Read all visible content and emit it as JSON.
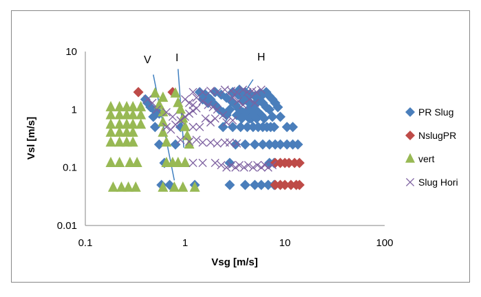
{
  "chart_data": {
    "type": "scatter",
    "title": "",
    "xlabel": "Vsg [m/s]",
    "ylabel": "Vsl [m/s]",
    "x_scale": "log",
    "y_scale": "log",
    "xlim": [
      0.1,
      100
    ],
    "ylim": [
      0.01,
      10
    ],
    "x_tick_labels": [
      "0.1",
      "1",
      "10",
      "100"
    ],
    "y_tick_labels": [
      "0.01",
      "0.1",
      "1",
      "10"
    ],
    "grid": false,
    "legend_position": "right",
    "annotations": [
      {
        "text": "V",
        "x": 0.42,
        "y": 6.3
      },
      {
        "text": "I",
        "x": 0.83,
        "y": 6.8
      },
      {
        "text": "H",
        "x": 5.8,
        "y": 7.0
      }
    ],
    "annotation_lines": [
      {
        "label": "V",
        "points": [
          [
            0.48,
            4.0
          ],
          [
            0.78,
            0.06
          ]
        ]
      },
      {
        "label": "I",
        "points": [
          [
            0.85,
            5.0
          ],
          [
            0.97,
            0.22
          ]
        ]
      },
      {
        "label": "H",
        "points": [
          [
            4.8,
            3.3
          ],
          [
            2.3,
            0.48
          ]
        ]
      }
    ],
    "series": [
      {
        "name": "PR Slug",
        "marker": "diamond",
        "color": "#4A7EBB",
        "points": [
          [
            0.4,
            1.5
          ],
          [
            0.42,
            1.3
          ],
          [
            0.45,
            1.1
          ],
          [
            0.5,
            0.95
          ],
          [
            0.55,
            0.85
          ],
          [
            0.48,
            0.75
          ],
          [
            0.5,
            0.5
          ],
          [
            0.55,
            0.25
          ],
          [
            0.62,
            0.12
          ],
          [
            0.58,
            0.05
          ],
          [
            0.7,
            0.05
          ],
          [
            0.8,
            0.25
          ],
          [
            0.9,
            0.5
          ],
          [
            1.25,
            0.05
          ],
          [
            1.4,
            2.0
          ],
          [
            1.6,
            1.8
          ],
          [
            1.8,
            1.5
          ],
          [
            2.0,
            1.2
          ],
          [
            2.2,
            1.0
          ],
          [
            2.4,
            0.9
          ],
          [
            2.6,
            0.8
          ],
          [
            1.5,
            1.5
          ],
          [
            1.7,
            1.3
          ],
          [
            2.0,
            2.0
          ],
          [
            2.3,
            1.8
          ],
          [
            2.6,
            1.6
          ],
          [
            2.9,
            1.4
          ],
          [
            3.2,
            1.2
          ],
          [
            3.5,
            1.0
          ],
          [
            3.8,
            0.9
          ],
          [
            4.1,
            0.8
          ],
          [
            4.4,
            0.7
          ],
          [
            2.4,
            0.5
          ],
          [
            3.0,
            0.5
          ],
          [
            3.6,
            0.5
          ],
          [
            4.2,
            0.5
          ],
          [
            4.8,
            0.5
          ],
          [
            5.4,
            0.5
          ],
          [
            6.0,
            0.5
          ],
          [
            6.6,
            0.5
          ],
          [
            7.2,
            0.5
          ],
          [
            3.0,
            2.0
          ],
          [
            3.4,
            1.8
          ],
          [
            3.8,
            1.6
          ],
          [
            4.2,
            1.4
          ],
          [
            4.6,
            1.2
          ],
          [
            5.0,
            1.0
          ],
          [
            5.4,
            0.9
          ],
          [
            5.8,
            0.8
          ],
          [
            3.5,
            2.2
          ],
          [
            4.0,
            2.0
          ],
          [
            4.5,
            1.8
          ],
          [
            5.0,
            1.7
          ],
          [
            5.5,
            1.5
          ],
          [
            6.0,
            1.3
          ],
          [
            6.5,
            1.1
          ],
          [
            7.0,
            1.0
          ],
          [
            4.0,
            1.5
          ],
          [
            4.5,
            1.3
          ],
          [
            5.0,
            1.2
          ],
          [
            6.0,
            1.8
          ],
          [
            6.5,
            2.0
          ],
          [
            7.0,
            1.7
          ],
          [
            7.5,
            1.5
          ],
          [
            8.0,
            1.3
          ],
          [
            8.5,
            1.1
          ],
          [
            4.6,
            0.7
          ],
          [
            5.2,
            0.7
          ],
          [
            6.2,
            0.7
          ],
          [
            7.5,
            0.75
          ],
          [
            9.0,
            0.75
          ],
          [
            3.2,
            0.25
          ],
          [
            4.0,
            0.25
          ],
          [
            5.0,
            0.25
          ],
          [
            6.0,
            0.25
          ],
          [
            7.0,
            0.25
          ],
          [
            8.0,
            0.25
          ],
          [
            9.0,
            0.25
          ],
          [
            10.5,
            0.25
          ],
          [
            12.0,
            0.25
          ],
          [
            13.5,
            0.25
          ],
          [
            7.8,
            0.5
          ],
          [
            10.5,
            0.5
          ],
          [
            12.0,
            0.5
          ],
          [
            2.8,
            0.12
          ],
          [
            7.0,
            0.12
          ],
          [
            7.8,
            0.12
          ],
          [
            2.8,
            0.05
          ],
          [
            4.0,
            0.05
          ],
          [
            5.0,
            0.05
          ],
          [
            5.8,
            0.05
          ],
          [
            6.8,
            0.05
          ],
          [
            7.8,
            0.05
          ],
          [
            3.8,
            1.4
          ],
          [
            4.3,
            1.0
          ],
          [
            4.8,
            0.9
          ],
          [
            5.3,
            1.4
          ],
          [
            5.6,
            1.9
          ],
          [
            2.8,
            1.0
          ],
          [
            3.3,
            0.8
          ],
          [
            3.7,
            0.7
          ]
        ]
      },
      {
        "name": "NslugPR",
        "marker": "diamond",
        "color": "#BE4B48",
        "points": [
          [
            0.34,
            2.0
          ],
          [
            0.75,
            2.0
          ],
          [
            8.0,
            0.12
          ],
          [
            9.0,
            0.12
          ],
          [
            10.0,
            0.12
          ],
          [
            11.0,
            0.12
          ],
          [
            12.5,
            0.12
          ],
          [
            14.0,
            0.12
          ],
          [
            8.0,
            0.05
          ],
          [
            9.0,
            0.05
          ],
          [
            10.0,
            0.05
          ],
          [
            11.5,
            0.05
          ],
          [
            13.0,
            0.05
          ],
          [
            14.0,
            0.05
          ]
        ]
      },
      {
        "name": "vert",
        "marker": "triangle",
        "color": "#98B954",
        "points": [
          [
            0.18,
            1.1
          ],
          [
            0.22,
            1.1
          ],
          [
            0.26,
            1.1
          ],
          [
            0.3,
            1.1
          ],
          [
            0.18,
            0.8
          ],
          [
            0.22,
            0.8
          ],
          [
            0.26,
            0.8
          ],
          [
            0.3,
            0.8
          ],
          [
            0.18,
            0.55
          ],
          [
            0.22,
            0.55
          ],
          [
            0.26,
            0.55
          ],
          [
            0.3,
            0.55
          ],
          [
            0.18,
            0.4
          ],
          [
            0.22,
            0.4
          ],
          [
            0.26,
            0.4
          ],
          [
            0.3,
            0.4
          ],
          [
            0.18,
            0.27
          ],
          [
            0.22,
            0.27
          ],
          [
            0.26,
            0.27
          ],
          [
            0.3,
            0.27
          ],
          [
            0.18,
            0.12
          ],
          [
            0.22,
            0.12
          ],
          [
            0.28,
            0.12
          ],
          [
            0.33,
            0.12
          ],
          [
            0.19,
            0.045
          ],
          [
            0.23,
            0.045
          ],
          [
            0.27,
            0.045
          ],
          [
            0.32,
            0.045
          ],
          [
            0.36,
            1.1
          ],
          [
            0.36,
            0.8
          ],
          [
            0.36,
            0.55
          ],
          [
            0.5,
            1.9
          ],
          [
            0.6,
            1.6
          ],
          [
            0.55,
            1.2
          ],
          [
            0.6,
            0.9
          ],
          [
            0.6,
            0.6
          ],
          [
            0.6,
            0.4
          ],
          [
            0.65,
            0.27
          ],
          [
            0.65,
            0.12
          ],
          [
            0.75,
            0.12
          ],
          [
            0.6,
            0.045
          ],
          [
            0.78,
            0.045
          ],
          [
            0.8,
            1.9
          ],
          [
            0.85,
            1.3
          ],
          [
            0.9,
            1.0
          ],
          [
            0.95,
            0.7
          ],
          [
            1.0,
            0.5
          ],
          [
            1.05,
            0.35
          ],
          [
            1.1,
            0.25
          ],
          [
            0.85,
            0.12
          ],
          [
            1.0,
            0.12
          ],
          [
            1.25,
            0.045
          ],
          [
            0.95,
            0.045
          ]
        ]
      },
      {
        "name": "Slug Hori",
        "marker": "x",
        "color": "#7D60A0",
        "points": [
          [
            0.42,
            1.5
          ],
          [
            0.47,
            1.3
          ],
          [
            0.52,
            1.0
          ],
          [
            0.65,
            0.9
          ],
          [
            0.75,
            0.75
          ],
          [
            0.65,
            0.5
          ],
          [
            0.72,
            0.45
          ],
          [
            0.8,
            0.55
          ],
          [
            0.9,
            0.65
          ],
          [
            1.0,
            0.75
          ],
          [
            1.1,
            0.85
          ],
          [
            1.2,
            0.95
          ],
          [
            1.3,
            1.05
          ],
          [
            1.0,
            1.5
          ],
          [
            1.1,
            1.3
          ],
          [
            1.2,
            1.2
          ],
          [
            1.3,
            1.6
          ],
          [
            1.5,
            1.4
          ],
          [
            1.7,
            1.2
          ],
          [
            1.9,
            1.1
          ],
          [
            2.1,
            1.0
          ],
          [
            1.2,
            2.0
          ],
          [
            1.5,
            2.0
          ],
          [
            1.8,
            2.1
          ],
          [
            2.1,
            2.0
          ],
          [
            2.5,
            2.2
          ],
          [
            2.9,
            2.1
          ],
          [
            3.3,
            2.0
          ],
          [
            3.8,
            2.2
          ],
          [
            4.2,
            2.0
          ],
          [
            4.7,
            2.1
          ],
          [
            5.2,
            2.0
          ],
          [
            5.8,
            2.2
          ],
          [
            1.6,
            0.7
          ],
          [
            1.8,
            0.6
          ],
          [
            2.0,
            0.7
          ],
          [
            2.4,
            0.8
          ],
          [
            1.2,
            0.5
          ],
          [
            1.4,
            0.5
          ],
          [
            0.9,
            0.3
          ],
          [
            1.1,
            0.28
          ],
          [
            1.3,
            0.3
          ],
          [
            1.5,
            0.27
          ],
          [
            1.8,
            0.27
          ],
          [
            2.1,
            0.26
          ],
          [
            2.5,
            0.27
          ],
          [
            2.8,
            0.27
          ],
          [
            3.3,
            0.26
          ],
          [
            1.2,
            0.12
          ],
          [
            1.5,
            0.12
          ],
          [
            2.0,
            0.12
          ],
          [
            2.3,
            0.11
          ],
          [
            2.6,
            0.1
          ],
          [
            2.9,
            0.11
          ],
          [
            3.2,
            0.1
          ],
          [
            3.5,
            0.11
          ],
          [
            3.9,
            0.1
          ],
          [
            4.3,
            0.11
          ],
          [
            4.8,
            0.1
          ],
          [
            5.3,
            0.11
          ],
          [
            5.8,
            0.1
          ],
          [
            6.3,
            0.11
          ],
          [
            6.8,
            0.1
          ],
          [
            7.5,
            0.11
          ],
          [
            3.0,
            1.6
          ],
          [
            3.4,
            1.4
          ],
          [
            3.8,
            1.2
          ],
          [
            4.4,
            1.5
          ],
          [
            5.0,
            1.3
          ],
          [
            2.6,
            0.6
          ],
          [
            3.0,
            0.65
          ]
        ]
      }
    ]
  }
}
